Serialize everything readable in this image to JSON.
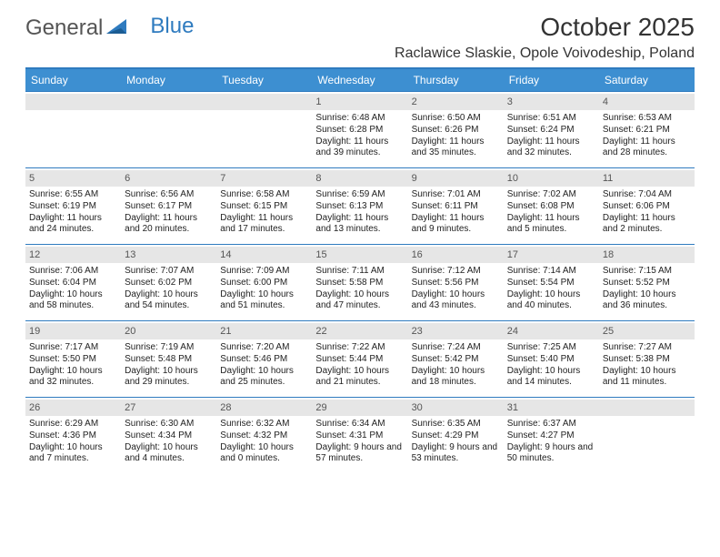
{
  "logo": {
    "word1": "General",
    "word2": "Blue"
  },
  "title": "October 2025",
  "location": "Raclawice Slaskie, Opole Voivodeship, Poland",
  "colors": {
    "header_bg": "#3d8fd1",
    "border": "#2f7bbf",
    "daynum_bg": "#e6e6e6",
    "text": "#222222",
    "logo_gray": "#555555"
  },
  "day_headers": [
    "Sunday",
    "Monday",
    "Tuesday",
    "Wednesday",
    "Thursday",
    "Friday",
    "Saturday"
  ],
  "leading_blanks": 3,
  "days": [
    {
      "n": 1,
      "sr": "6:48 AM",
      "ss": "6:28 PM",
      "dl": "11 hours and 39 minutes."
    },
    {
      "n": 2,
      "sr": "6:50 AM",
      "ss": "6:26 PM",
      "dl": "11 hours and 35 minutes."
    },
    {
      "n": 3,
      "sr": "6:51 AM",
      "ss": "6:24 PM",
      "dl": "11 hours and 32 minutes."
    },
    {
      "n": 4,
      "sr": "6:53 AM",
      "ss": "6:21 PM",
      "dl": "11 hours and 28 minutes."
    },
    {
      "n": 5,
      "sr": "6:55 AM",
      "ss": "6:19 PM",
      "dl": "11 hours and 24 minutes."
    },
    {
      "n": 6,
      "sr": "6:56 AM",
      "ss": "6:17 PM",
      "dl": "11 hours and 20 minutes."
    },
    {
      "n": 7,
      "sr": "6:58 AM",
      "ss": "6:15 PM",
      "dl": "11 hours and 17 minutes."
    },
    {
      "n": 8,
      "sr": "6:59 AM",
      "ss": "6:13 PM",
      "dl": "11 hours and 13 minutes."
    },
    {
      "n": 9,
      "sr": "7:01 AM",
      "ss": "6:11 PM",
      "dl": "11 hours and 9 minutes."
    },
    {
      "n": 10,
      "sr": "7:02 AM",
      "ss": "6:08 PM",
      "dl": "11 hours and 5 minutes."
    },
    {
      "n": 11,
      "sr": "7:04 AM",
      "ss": "6:06 PM",
      "dl": "11 hours and 2 minutes."
    },
    {
      "n": 12,
      "sr": "7:06 AM",
      "ss": "6:04 PM",
      "dl": "10 hours and 58 minutes."
    },
    {
      "n": 13,
      "sr": "7:07 AM",
      "ss": "6:02 PM",
      "dl": "10 hours and 54 minutes."
    },
    {
      "n": 14,
      "sr": "7:09 AM",
      "ss": "6:00 PM",
      "dl": "10 hours and 51 minutes."
    },
    {
      "n": 15,
      "sr": "7:11 AM",
      "ss": "5:58 PM",
      "dl": "10 hours and 47 minutes."
    },
    {
      "n": 16,
      "sr": "7:12 AM",
      "ss": "5:56 PM",
      "dl": "10 hours and 43 minutes."
    },
    {
      "n": 17,
      "sr": "7:14 AM",
      "ss": "5:54 PM",
      "dl": "10 hours and 40 minutes."
    },
    {
      "n": 18,
      "sr": "7:15 AM",
      "ss": "5:52 PM",
      "dl": "10 hours and 36 minutes."
    },
    {
      "n": 19,
      "sr": "7:17 AM",
      "ss": "5:50 PM",
      "dl": "10 hours and 32 minutes."
    },
    {
      "n": 20,
      "sr": "7:19 AM",
      "ss": "5:48 PM",
      "dl": "10 hours and 29 minutes."
    },
    {
      "n": 21,
      "sr": "7:20 AM",
      "ss": "5:46 PM",
      "dl": "10 hours and 25 minutes."
    },
    {
      "n": 22,
      "sr": "7:22 AM",
      "ss": "5:44 PM",
      "dl": "10 hours and 21 minutes."
    },
    {
      "n": 23,
      "sr": "7:24 AM",
      "ss": "5:42 PM",
      "dl": "10 hours and 18 minutes."
    },
    {
      "n": 24,
      "sr": "7:25 AM",
      "ss": "5:40 PM",
      "dl": "10 hours and 14 minutes."
    },
    {
      "n": 25,
      "sr": "7:27 AM",
      "ss": "5:38 PM",
      "dl": "10 hours and 11 minutes."
    },
    {
      "n": 26,
      "sr": "6:29 AM",
      "ss": "4:36 PM",
      "dl": "10 hours and 7 minutes."
    },
    {
      "n": 27,
      "sr": "6:30 AM",
      "ss": "4:34 PM",
      "dl": "10 hours and 4 minutes."
    },
    {
      "n": 28,
      "sr": "6:32 AM",
      "ss": "4:32 PM",
      "dl": "10 hours and 0 minutes."
    },
    {
      "n": 29,
      "sr": "6:34 AM",
      "ss": "4:31 PM",
      "dl": "9 hours and 57 minutes."
    },
    {
      "n": 30,
      "sr": "6:35 AM",
      "ss": "4:29 PM",
      "dl": "9 hours and 53 minutes."
    },
    {
      "n": 31,
      "sr": "6:37 AM",
      "ss": "4:27 PM",
      "dl": "9 hours and 50 minutes."
    }
  ],
  "labels": {
    "sunrise": "Sunrise:",
    "sunset": "Sunset:",
    "daylight": "Daylight:"
  }
}
